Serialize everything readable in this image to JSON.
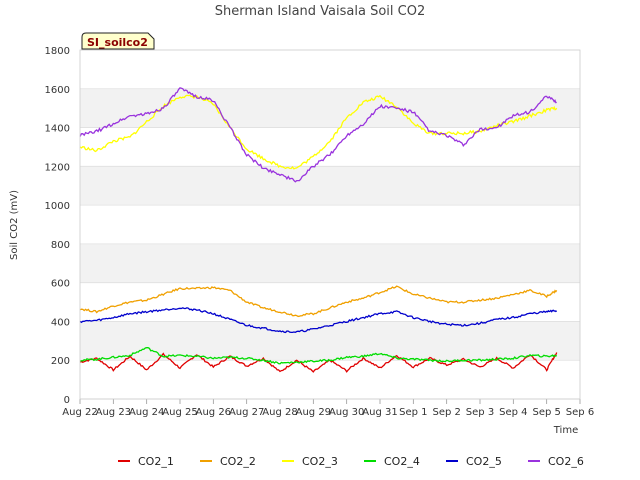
{
  "chart_data": {
    "type": "line",
    "title": "Sherman Island Vaisala Soil CO2",
    "badge": "SI_soilco2",
    "xlabel": "Time",
    "ylabel": "Soil CO2 (mV)",
    "ylim": [
      0,
      1800
    ],
    "yticks": [
      0,
      200,
      400,
      600,
      800,
      1000,
      1200,
      1400,
      1600,
      1800
    ],
    "xlim": [
      0,
      15
    ],
    "xtick_labels": [
      "Aug 22",
      "Aug 23",
      "Aug 24",
      "Aug 25",
      "Aug 26",
      "Aug 27",
      "Aug 28",
      "Aug 29",
      "Aug 30",
      "Aug 31",
      "Sep 1",
      "Sep 2",
      "Sep 3",
      "Sep 4",
      "Sep 5",
      "Sep 6"
    ],
    "grid": "horizontal bands",
    "legend": "bottom",
    "x_days": [
      0.0,
      0.5,
      1.0,
      1.5,
      2.0,
      2.5,
      3.0,
      3.5,
      4.0,
      4.5,
      5.0,
      5.5,
      6.0,
      6.5,
      7.0,
      7.5,
      8.0,
      8.5,
      9.0,
      9.5,
      10.0,
      10.5,
      11.0,
      11.5,
      12.0,
      12.5,
      13.0,
      13.5,
      14.0,
      14.3
    ],
    "series": [
      {
        "name": "CO2_1",
        "color": "#e00000",
        "values": [
          190,
          210,
          150,
          220,
          150,
          230,
          160,
          230,
          165,
          220,
          170,
          210,
          140,
          200,
          140,
          200,
          145,
          210,
          160,
          225,
          165,
          210,
          175,
          205,
          165,
          210,
          160,
          230,
          150,
          240
        ]
      },
      {
        "name": "CO2_2",
        "color": "#f0a000",
        "values": [
          465,
          450,
          480,
          500,
          510,
          540,
          570,
          570,
          575,
          560,
          500,
          470,
          450,
          430,
          440,
          470,
          500,
          520,
          550,
          580,
          540,
          520,
          500,
          500,
          510,
          520,
          540,
          560,
          530,
          560
        ]
      },
      {
        "name": "CO2_3",
        "color": "#ffff00",
        "values": [
          1300,
          1280,
          1330,
          1350,
          1430,
          1510,
          1560,
          1560,
          1520,
          1400,
          1290,
          1240,
          1200,
          1190,
          1250,
          1330,
          1450,
          1530,
          1560,
          1510,
          1420,
          1370,
          1370,
          1370,
          1380,
          1410,
          1430,
          1460,
          1490,
          1500
        ]
      },
      {
        "name": "CO2_4",
        "color": "#00dd00",
        "values": [
          200,
          205,
          215,
          225,
          265,
          220,
          225,
          220,
          210,
          215,
          210,
          200,
          185,
          190,
          195,
          200,
          215,
          220,
          235,
          210,
          205,
          200,
          195,
          200,
          200,
          205,
          210,
          225,
          220,
          225
        ]
      },
      {
        "name": "CO2_5",
        "color": "#0000cc",
        "values": [
          400,
          405,
          420,
          440,
          450,
          460,
          470,
          460,
          440,
          410,
          380,
          365,
          350,
          345,
          360,
          380,
          400,
          420,
          440,
          450,
          420,
          400,
          385,
          380,
          390,
          410,
          420,
          440,
          450,
          455
        ]
      },
      {
        "name": "CO2_6",
        "color": "#9933dd",
        "values": [
          1360,
          1380,
          1420,
          1460,
          1470,
          1500,
          1600,
          1560,
          1540,
          1400,
          1260,
          1190,
          1160,
          1120,
          1200,
          1260,
          1360,
          1420,
          1510,
          1500,
          1480,
          1380,
          1360,
          1310,
          1390,
          1400,
          1460,
          1480,
          1560,
          1530
        ]
      }
    ]
  }
}
